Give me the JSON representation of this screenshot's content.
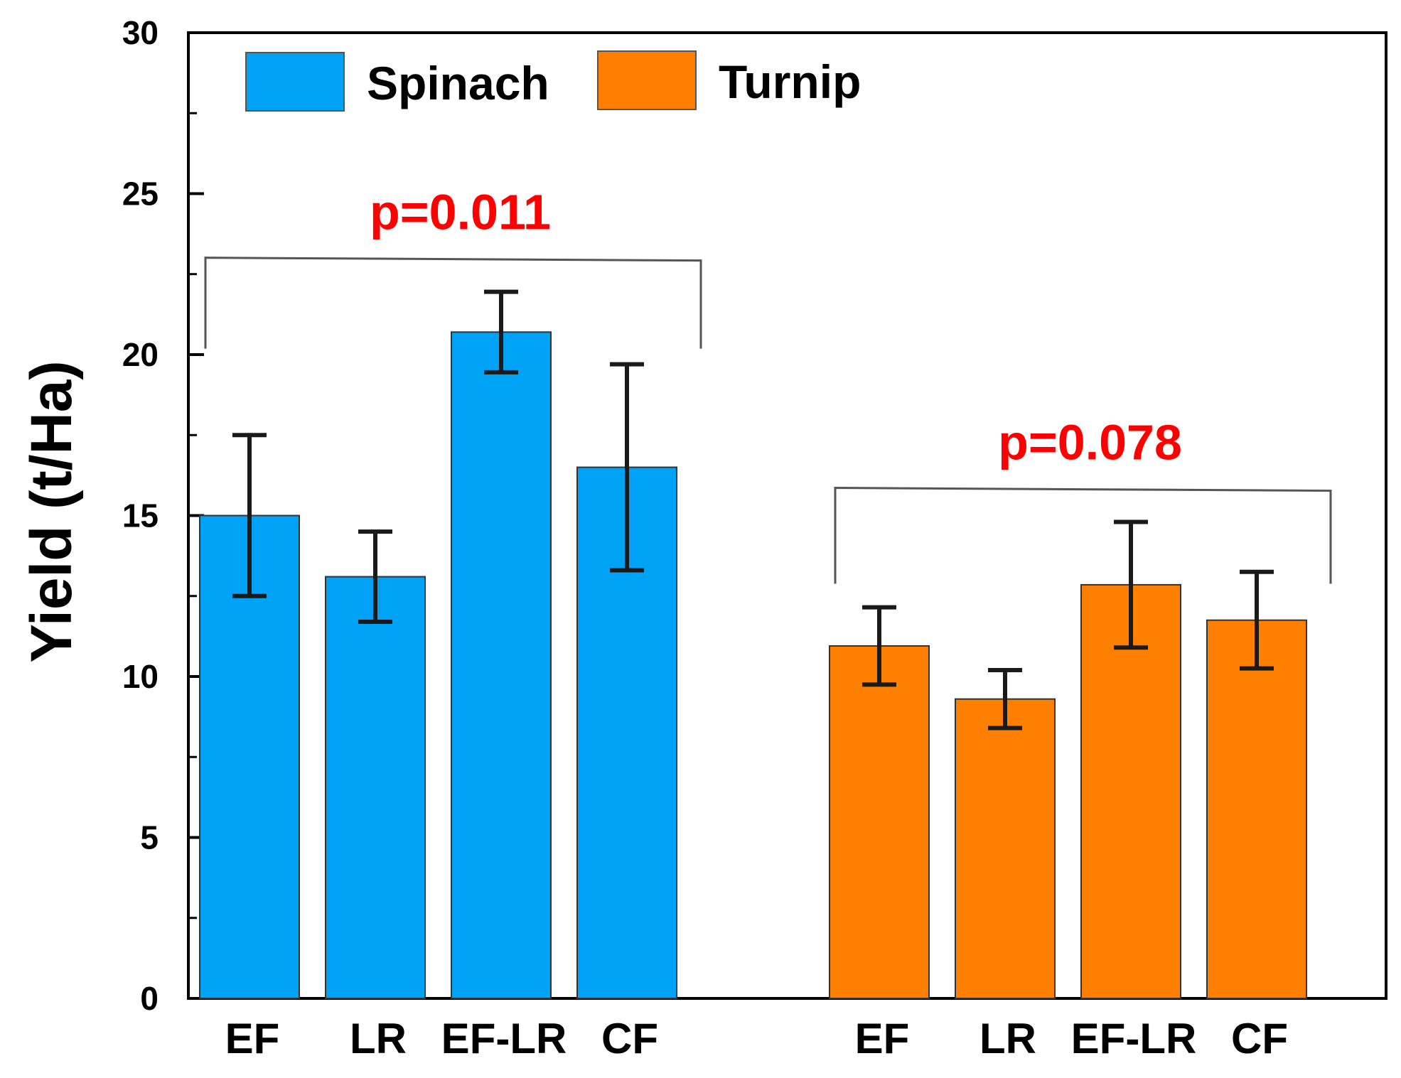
{
  "chart_data": {
    "type": "bar",
    "title": "",
    "xlabel": "",
    "ylabel": "Yield (t/Ha)",
    "ylim": [
      0,
      30
    ],
    "yticks": [
      0,
      5,
      10,
      15,
      20,
      25,
      30
    ],
    "grid": false,
    "legend_position": "top-left",
    "categories": [
      "EF",
      "LR",
      "EF-LR",
      "CF"
    ],
    "series": [
      {
        "name": "Spinach",
        "color": "#00A2F5",
        "values": [
          15.0,
          13.1,
          20.7,
          16.5
        ],
        "errors": [
          2.5,
          1.4,
          1.25,
          3.2
        ],
        "p_value_label": "p=0.011"
      },
      {
        "name": "Turnip",
        "color": "#FF8000",
        "values": [
          10.95,
          9.3,
          12.85,
          11.75
        ],
        "errors": [
          1.2,
          0.9,
          1.95,
          1.5
        ],
        "p_value_label": "p=0.078"
      }
    ],
    "annotation_color": "#FF0000"
  }
}
